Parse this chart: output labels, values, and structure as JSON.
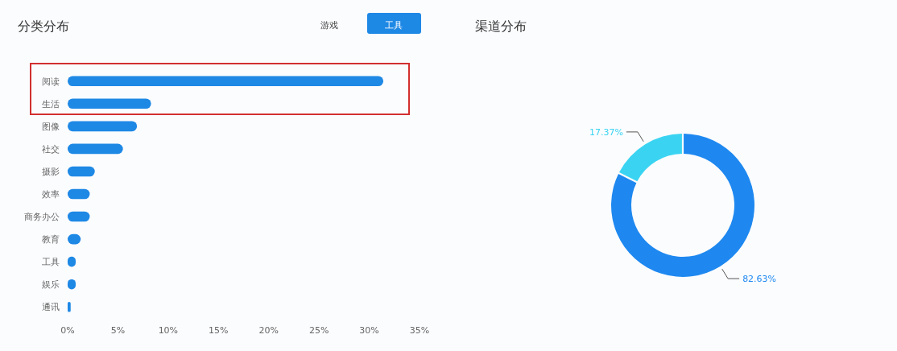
{
  "chart_data": [
    {
      "type": "bar",
      "orientation": "horizontal",
      "title": "分类分布",
      "annotations": [
        "游戏",
        "工具"
      ],
      "categories": [
        "阅读",
        "生活",
        "图像",
        "社交",
        "摄影",
        "效率",
        "商务办公",
        "教育",
        "工具",
        "娱乐",
        "通讯"
      ],
      "values": [
        31.4,
        8.3,
        6.9,
        5.5,
        2.7,
        2.2,
        2.2,
        1.3,
        0.8,
        0.8,
        0.3
      ],
      "color": "#1e88e5",
      "xlim": [
        0,
        35
      ],
      "xticks": [
        {
          "value": 0,
          "label": "0%"
        },
        {
          "value": 5,
          "label": "5%"
        },
        {
          "value": 10,
          "label": "10%"
        },
        {
          "value": 15,
          "label": "15%"
        },
        {
          "value": 20,
          "label": "20%"
        },
        {
          "value": 25,
          "label": "25%"
        },
        {
          "value": 30,
          "label": "30%"
        },
        {
          "value": 35,
          "label": "35%"
        }
      ]
    },
    {
      "type": "donut",
      "title": "渠道分布",
      "categories": [
        null,
        null
      ],
      "values": [
        82.63,
        17.37
      ],
      "colors": [
        "#1e88f0",
        "#3ad4f2"
      ],
      "value_labels": [
        "82.63%",
        "17.37%"
      ]
    }
  ]
}
